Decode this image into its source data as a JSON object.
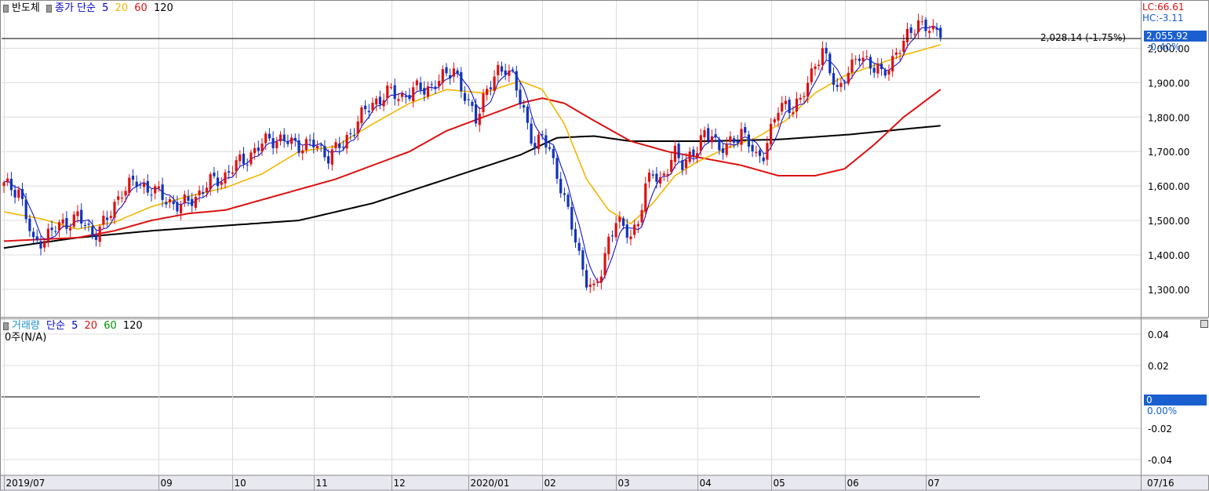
{
  "price_legend": {
    "series_name": "반도체",
    "ma_label": "종가 단순",
    "periods": [
      "5",
      "20",
      "60",
      "120"
    ],
    "colors": [
      "#0000cc",
      "#f2b600",
      "#dd1111",
      "#000000"
    ]
  },
  "volume_legend": {
    "series_name": "거래량",
    "ma_label": "단순",
    "periods": [
      "5",
      "20",
      "60",
      "120"
    ],
    "colors": [
      "#0000cc",
      "#dd1111",
      "#009900",
      "#000000"
    ],
    "status": "0주(N/A)"
  },
  "info": {
    "lc": "LC:66.61",
    "hc": "HC:-3.11",
    "current_price": "2,055.92",
    "current_change": "-0.40%",
    "ref_line_label": "2,028.14 (-1.75%)",
    "volume_value": "0",
    "volume_change": "0.00%",
    "date_label": "07/16"
  },
  "colors": {
    "up": "#dd1111",
    "down": "#1133bb",
    "ma5": "#0000cc",
    "ma20": "#f2b600",
    "ma60": "#dd1111",
    "ma120": "#000000",
    "tag_bg": "#1a5fd0",
    "grid": "#dcdcdc"
  },
  "chart_data": [
    {
      "type": "candlestick",
      "title": "반도체",
      "ylim": [
        1220,
        2140
      ],
      "y_ticks": [
        1300,
        1400,
        1500,
        1600,
        1700,
        1800,
        1900,
        2000
      ],
      "y_tick_labels": [
        "1,300.00",
        "1,400.00",
        "1,500.00",
        "1,600.00",
        "1,700.00",
        "1,800.00",
        "1,900.00",
        "2,000.00"
      ],
      "x_ticks": [
        {
          "label": "2019/07",
          "index": 0
        },
        {
          "label": "09",
          "index": 42
        },
        {
          "label": "10",
          "index": 62
        },
        {
          "label": "11",
          "index": 84
        },
        {
          "label": "12",
          "index": 105
        },
        {
          "label": "2020/01",
          "index": 126
        },
        {
          "label": "02",
          "index": 146
        },
        {
          "label": "03",
          "index": 166
        },
        {
          "label": "04",
          "index": 188
        },
        {
          "label": "05",
          "index": 208
        },
        {
          "label": "06",
          "index": 228
        },
        {
          "label": "07",
          "index": 250
        }
      ],
      "reference_line": 2028.14,
      "anchors": [
        {
          "i": 0,
          "v": 1600
        },
        {
          "i": 4,
          "v": 1590
        },
        {
          "i": 8,
          "v": 1430
        },
        {
          "i": 12,
          "v": 1460
        },
        {
          "i": 16,
          "v": 1490
        },
        {
          "i": 20,
          "v": 1510
        },
        {
          "i": 24,
          "v": 1460
        },
        {
          "i": 28,
          "v": 1500
        },
        {
          "i": 32,
          "v": 1590
        },
        {
          "i": 36,
          "v": 1610
        },
        {
          "i": 40,
          "v": 1590
        },
        {
          "i": 44,
          "v": 1560
        },
        {
          "i": 48,
          "v": 1540
        },
        {
          "i": 52,
          "v": 1570
        },
        {
          "i": 56,
          "v": 1610
        },
        {
          "i": 60,
          "v": 1630
        },
        {
          "i": 64,
          "v": 1670
        },
        {
          "i": 68,
          "v": 1700
        },
        {
          "i": 72,
          "v": 1740
        },
        {
          "i": 76,
          "v": 1730
        },
        {
          "i": 80,
          "v": 1720
        },
        {
          "i": 84,
          "v": 1720
        },
        {
          "i": 88,
          "v": 1690
        },
        {
          "i": 92,
          "v": 1720
        },
        {
          "i": 96,
          "v": 1790
        },
        {
          "i": 100,
          "v": 1840
        },
        {
          "i": 104,
          "v": 1870
        },
        {
          "i": 108,
          "v": 1860
        },
        {
          "i": 112,
          "v": 1880
        },
        {
          "i": 116,
          "v": 1890
        },
        {
          "i": 120,
          "v": 1920
        },
        {
          "i": 122,
          "v": 1950
        },
        {
          "i": 124,
          "v": 1880
        },
        {
          "i": 126,
          "v": 1830
        },
        {
          "i": 128,
          "v": 1800
        },
        {
          "i": 130,
          "v": 1860
        },
        {
          "i": 132,
          "v": 1890
        },
        {
          "i": 134,
          "v": 1930
        },
        {
          "i": 136,
          "v": 1950
        },
        {
          "i": 138,
          "v": 1920
        },
        {
          "i": 140,
          "v": 1840
        },
        {
          "i": 142,
          "v": 1780
        },
        {
          "i": 144,
          "v": 1720
        },
        {
          "i": 146,
          "v": 1740
        },
        {
          "i": 148,
          "v": 1700
        },
        {
          "i": 150,
          "v": 1640
        },
        {
          "i": 152,
          "v": 1560
        },
        {
          "i": 154,
          "v": 1480
        },
        {
          "i": 156,
          "v": 1400
        },
        {
          "i": 158,
          "v": 1330
        },
        {
          "i": 160,
          "v": 1290
        },
        {
          "i": 162,
          "v": 1350
        },
        {
          "i": 164,
          "v": 1450
        },
        {
          "i": 166,
          "v": 1500
        },
        {
          "i": 168,
          "v": 1470
        },
        {
          "i": 170,
          "v": 1460
        },
        {
          "i": 172,
          "v": 1500
        },
        {
          "i": 174,
          "v": 1590
        },
        {
          "i": 176,
          "v": 1640
        },
        {
          "i": 178,
          "v": 1620
        },
        {
          "i": 180,
          "v": 1650
        },
        {
          "i": 182,
          "v": 1690
        },
        {
          "i": 184,
          "v": 1670
        },
        {
          "i": 186,
          "v": 1690
        },
        {
          "i": 188,
          "v": 1700
        },
        {
          "i": 190,
          "v": 1750
        },
        {
          "i": 192,
          "v": 1760
        },
        {
          "i": 194,
          "v": 1700
        },
        {
          "i": 196,
          "v": 1710
        },
        {
          "i": 198,
          "v": 1740
        },
        {
          "i": 200,
          "v": 1760
        },
        {
          "i": 202,
          "v": 1720
        },
        {
          "i": 204,
          "v": 1680
        },
        {
          "i": 206,
          "v": 1700
        },
        {
          "i": 208,
          "v": 1760
        },
        {
          "i": 210,
          "v": 1820
        },
        {
          "i": 212,
          "v": 1840
        },
        {
          "i": 214,
          "v": 1830
        },
        {
          "i": 216,
          "v": 1840
        },
        {
          "i": 218,
          "v": 1900
        },
        {
          "i": 220,
          "v": 1960
        },
        {
          "i": 222,
          "v": 1990
        },
        {
          "i": 224,
          "v": 1930
        },
        {
          "i": 226,
          "v": 1880
        },
        {
          "i": 228,
          "v": 1920
        },
        {
          "i": 230,
          "v": 1940
        },
        {
          "i": 232,
          "v": 1980
        },
        {
          "i": 234,
          "v": 1970
        },
        {
          "i": 236,
          "v": 1940
        },
        {
          "i": 238,
          "v": 1920
        },
        {
          "i": 240,
          "v": 1950
        },
        {
          "i": 242,
          "v": 1990
        },
        {
          "i": 244,
          "v": 2010
        },
        {
          "i": 246,
          "v": 2050
        },
        {
          "i": 248,
          "v": 2080
        },
        {
          "i": 250,
          "v": 2060
        },
        {
          "i": 252,
          "v": 2040
        },
        {
          "i": 254,
          "v": 2056
        }
      ],
      "ma20_anchors": [
        {
          "i": 0,
          "v": 1525
        },
        {
          "i": 10,
          "v": 1505
        },
        {
          "i": 20,
          "v": 1475
        },
        {
          "i": 30,
          "v": 1495
        },
        {
          "i": 40,
          "v": 1540
        },
        {
          "i": 50,
          "v": 1570
        },
        {
          "i": 60,
          "v": 1595
        },
        {
          "i": 70,
          "v": 1635
        },
        {
          "i": 80,
          "v": 1700
        },
        {
          "i": 90,
          "v": 1715
        },
        {
          "i": 100,
          "v": 1780
        },
        {
          "i": 110,
          "v": 1840
        },
        {
          "i": 120,
          "v": 1880
        },
        {
          "i": 130,
          "v": 1870
        },
        {
          "i": 140,
          "v": 1905
        },
        {
          "i": 146,
          "v": 1880
        },
        {
          "i": 152,
          "v": 1780
        },
        {
          "i": 158,
          "v": 1620
        },
        {
          "i": 164,
          "v": 1530
        },
        {
          "i": 170,
          "v": 1490
        },
        {
          "i": 176,
          "v": 1550
        },
        {
          "i": 182,
          "v": 1630
        },
        {
          "i": 188,
          "v": 1670
        },
        {
          "i": 196,
          "v": 1710
        },
        {
          "i": 204,
          "v": 1740
        },
        {
          "i": 212,
          "v": 1790
        },
        {
          "i": 220,
          "v": 1870
        },
        {
          "i": 228,
          "v": 1920
        },
        {
          "i": 236,
          "v": 1950
        },
        {
          "i": 244,
          "v": 1980
        },
        {
          "i": 254,
          "v": 2010
        }
      ],
      "ma60_anchors": [
        {
          "i": 0,
          "v": 1440
        },
        {
          "i": 20,
          "v": 1450
        },
        {
          "i": 30,
          "v": 1470
        },
        {
          "i": 40,
          "v": 1500
        },
        {
          "i": 50,
          "v": 1520
        },
        {
          "i": 60,
          "v": 1530
        },
        {
          "i": 70,
          "v": 1560
        },
        {
          "i": 80,
          "v": 1590
        },
        {
          "i": 90,
          "v": 1620
        },
        {
          "i": 100,
          "v": 1660
        },
        {
          "i": 110,
          "v": 1700
        },
        {
          "i": 120,
          "v": 1760
        },
        {
          "i": 130,
          "v": 1800
        },
        {
          "i": 140,
          "v": 1840
        },
        {
          "i": 146,
          "v": 1855
        },
        {
          "i": 152,
          "v": 1840
        },
        {
          "i": 160,
          "v": 1790
        },
        {
          "i": 170,
          "v": 1730
        },
        {
          "i": 180,
          "v": 1700
        },
        {
          "i": 190,
          "v": 1680
        },
        {
          "i": 200,
          "v": 1660
        },
        {
          "i": 210,
          "v": 1630
        },
        {
          "i": 220,
          "v": 1630
        },
        {
          "i": 228,
          "v": 1650
        },
        {
          "i": 236,
          "v": 1720
        },
        {
          "i": 244,
          "v": 1800
        },
        {
          "i": 254,
          "v": 1880
        }
      ],
      "ma120_anchors": [
        {
          "i": 0,
          "v": 1420
        },
        {
          "i": 20,
          "v": 1450
        },
        {
          "i": 40,
          "v": 1470
        },
        {
          "i": 60,
          "v": 1485
        },
        {
          "i": 80,
          "v": 1500
        },
        {
          "i": 100,
          "v": 1550
        },
        {
          "i": 120,
          "v": 1620
        },
        {
          "i": 140,
          "v": 1690
        },
        {
          "i": 150,
          "v": 1740
        },
        {
          "i": 160,
          "v": 1745
        },
        {
          "i": 170,
          "v": 1730
        },
        {
          "i": 190,
          "v": 1730
        },
        {
          "i": 210,
          "v": 1735
        },
        {
          "i": 230,
          "v": 1750
        },
        {
          "i": 244,
          "v": 1765
        },
        {
          "i": 254,
          "v": 1775
        }
      ]
    },
    {
      "type": "bar",
      "title": "거래량",
      "ylim": [
        -0.05,
        0.05
      ],
      "y_ticks": [
        -0.04,
        -0.02,
        0,
        0.02,
        0.04
      ],
      "y_tick_labels": [
        "-0.04",
        "-0.02",
        "",
        "0.02",
        "0.04"
      ],
      "values": []
    }
  ]
}
